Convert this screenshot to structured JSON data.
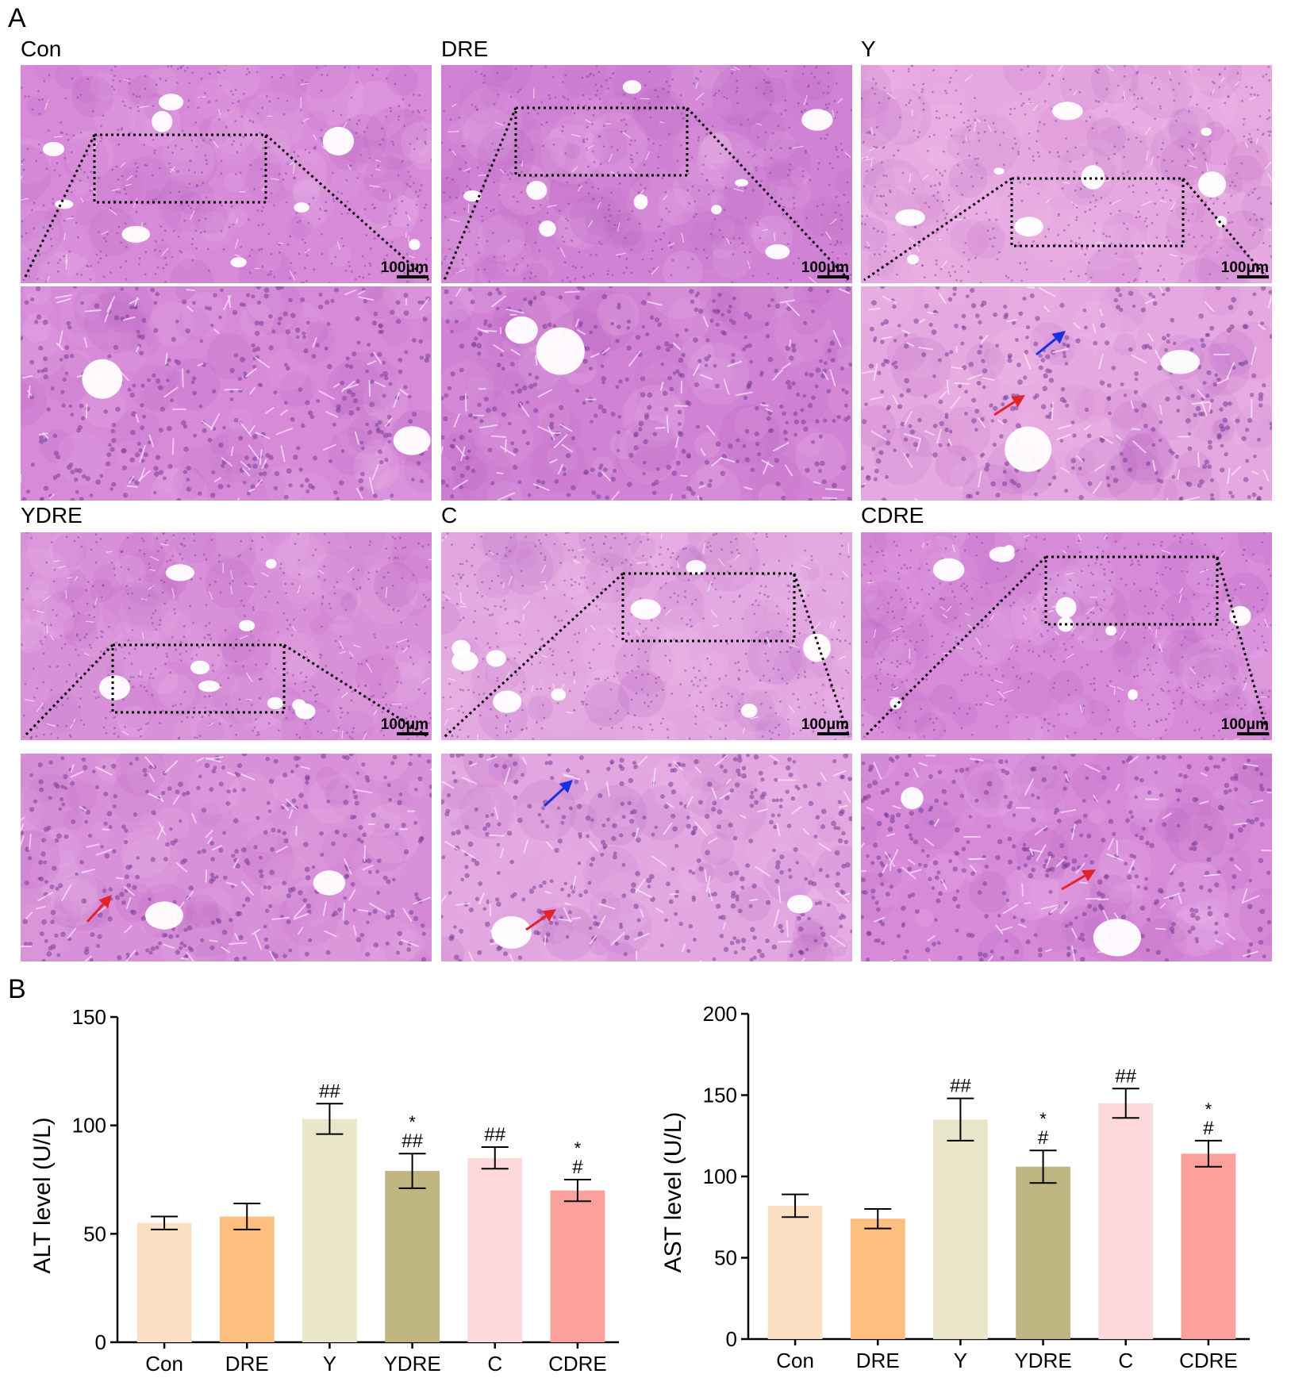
{
  "figure": {
    "panel_a_label": "A",
    "panel_b_label": "B",
    "scale_bar_label": "100μm"
  },
  "micrograph_groups": [
    {
      "name": "Con",
      "tissue_tone": "#d68ad8",
      "arrows": []
    },
    {
      "name": "DRE",
      "tissue_tone": "#d083d4",
      "arrows": []
    },
    {
      "name": "Y",
      "tissue_tone": "#e6a8e0",
      "arrows": [
        "blue",
        "red"
      ]
    },
    {
      "name": "YDRE",
      "tissue_tone": "#d890d8",
      "arrows": [
        "red"
      ]
    },
    {
      "name": "C",
      "tissue_tone": "#e2a6e0",
      "arrows": [
        "blue",
        "red"
      ]
    },
    {
      "name": "CDRE",
      "tissue_tone": "#d68ad8",
      "arrows": [
        "red"
      ]
    }
  ],
  "colors": {
    "arrow_red": "#e3232b",
    "arrow_blue": "#1730e0"
  },
  "chart_data": [
    {
      "type": "bar",
      "categories": [
        "Con",
        "DRE",
        "Y",
        "YDRE",
        "C",
        "CDRE"
      ],
      "values": [
        55,
        58,
        103,
        79,
        85,
        70
      ],
      "errors": [
        3,
        6,
        7,
        8,
        5,
        5
      ],
      "annotations": [
        "",
        "",
        "##",
        "*\n##",
        "##",
        "*\n#"
      ],
      "bar_colors": [
        "#fde0c4",
        "#fdbf80",
        "#e9e6c9",
        "#c0b681",
        "#fdd9db",
        "#fca09c"
      ],
      "ylabel": "ALT level (U/L)",
      "ylim": [
        0,
        150
      ],
      "yticks": [
        0,
        50,
        100,
        150
      ]
    },
    {
      "type": "bar",
      "categories": [
        "Con",
        "DRE",
        "Y",
        "YDRE",
        "C",
        "CDRE"
      ],
      "values": [
        82,
        74,
        135,
        106,
        145,
        114
      ],
      "errors": [
        7,
        6,
        13,
        10,
        9,
        8
      ],
      "annotations": [
        "",
        "",
        "##",
        "*\n#",
        "##",
        "*\n#"
      ],
      "bar_colors": [
        "#fde0c4",
        "#fdbf80",
        "#e9e6c9",
        "#c0b681",
        "#fdd9db",
        "#fca09c"
      ],
      "ylabel": "AST level (U/L)",
      "ylim": [
        0,
        200
      ],
      "yticks": [
        0,
        50,
        100,
        150,
        200
      ]
    }
  ]
}
